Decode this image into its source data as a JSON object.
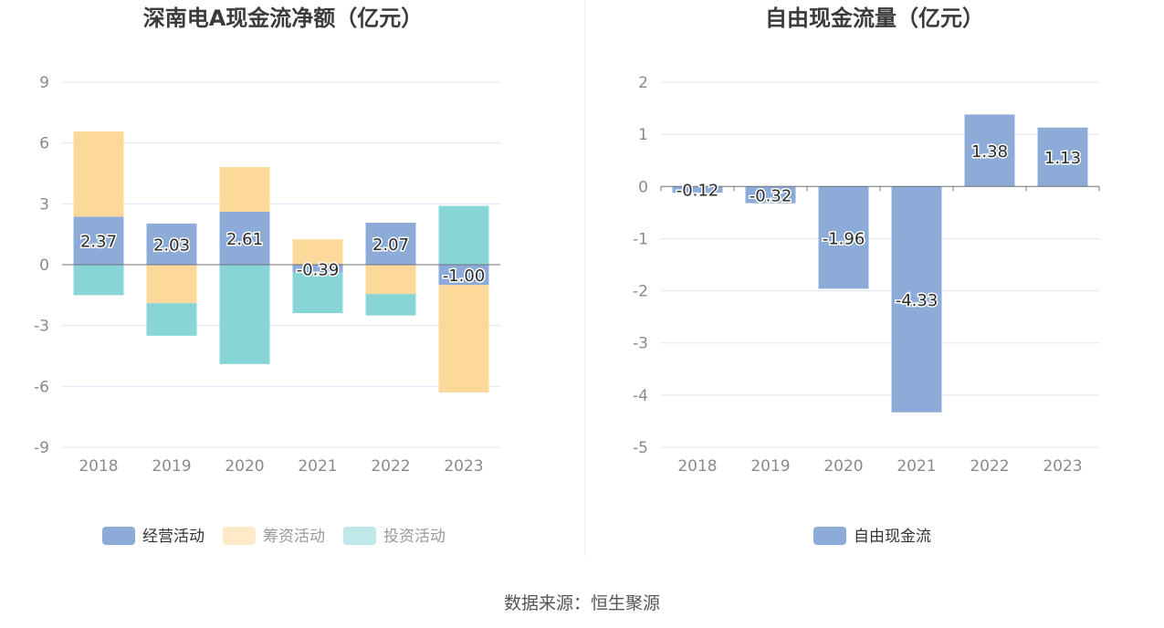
{
  "footer": {
    "source": "数据来源：恒生聚源"
  },
  "colors": {
    "operating": "#8dabd9",
    "financing": "#fdd89b",
    "investing": "#88d5d8",
    "fcf": "#8dabd9"
  },
  "chart_data": [
    {
      "type": "bar",
      "stacked": true,
      "title": "深南电A现金流净额（亿元）",
      "categories": [
        "2018",
        "2019",
        "2020",
        "2021",
        "2022",
        "2023"
      ],
      "ylim": [
        -9,
        9
      ],
      "yticks": [
        -9,
        -6,
        -3,
        0,
        3,
        6,
        9
      ],
      "grid": true,
      "legend_position": "bottom",
      "series": [
        {
          "name": "经营活动",
          "values": [
            2.37,
            2.03,
            2.61,
            -0.39,
            2.07,
            -1.0
          ],
          "labels": [
            "2.37",
            "2.03",
            "2.61",
            "-0.39",
            "2.07",
            "-1.00"
          ],
          "color": "#8dabd9",
          "legend_active": true
        },
        {
          "name": "筹资活动",
          "values": [
            4.2,
            -1.9,
            2.2,
            1.25,
            -1.45,
            -5.3
          ],
          "color": "#fdd89b",
          "legend_active": false
        },
        {
          "name": "投资活动",
          "values": [
            -1.5,
            -1.6,
            -4.9,
            -2.0,
            -1.05,
            2.9
          ],
          "color": "#88d5d8",
          "legend_active": false
        }
      ]
    },
    {
      "type": "bar",
      "title": "自由现金流量（亿元）",
      "categories": [
        "2018",
        "2019",
        "2020",
        "2021",
        "2022",
        "2023"
      ],
      "ylim": [
        -5,
        2
      ],
      "yticks": [
        -5,
        -4,
        -3,
        -2,
        -1,
        0,
        1,
        2
      ],
      "grid": true,
      "legend_position": "bottom",
      "series": [
        {
          "name": "自由现金流",
          "values": [
            -0.12,
            -0.32,
            -1.96,
            -4.33,
            1.38,
            1.13
          ],
          "labels": [
            "-0.12",
            "-0.32",
            "-1.96",
            "-4.33",
            "1.38",
            "1.13"
          ],
          "color": "#8dabd9",
          "legend_active": true
        }
      ]
    }
  ]
}
